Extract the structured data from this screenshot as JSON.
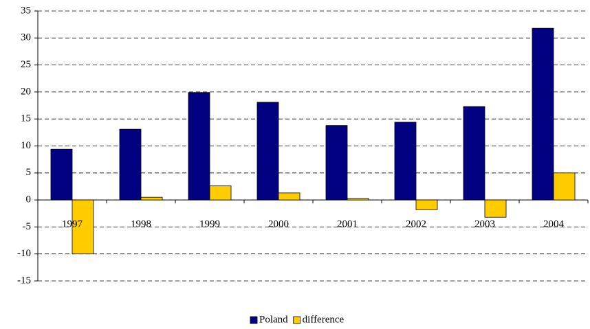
{
  "chart_data": {
    "type": "bar",
    "categories": [
      "1997",
      "1998",
      "1999",
      "2000",
      "2001",
      "2002",
      "2003",
      "2004"
    ],
    "series": [
      {
        "name": "Poland",
        "color": "#000080",
        "values": [
          9.4,
          13.1,
          19.9,
          18.1,
          13.8,
          14.4,
          17.3,
          31.8
        ]
      },
      {
        "name": "difference",
        "color": "#ffcc00",
        "values": [
          -10,
          0.5,
          2.6,
          1.3,
          0.3,
          -1.8,
          -3.2,
          5.0
        ]
      }
    ],
    "ylim": [
      -15,
      35
    ],
    "yticks": [
      -15,
      -10,
      -5,
      0,
      5,
      10,
      15,
      20,
      25,
      30,
      35
    ],
    "grid": true,
    "legend": "bottom"
  }
}
